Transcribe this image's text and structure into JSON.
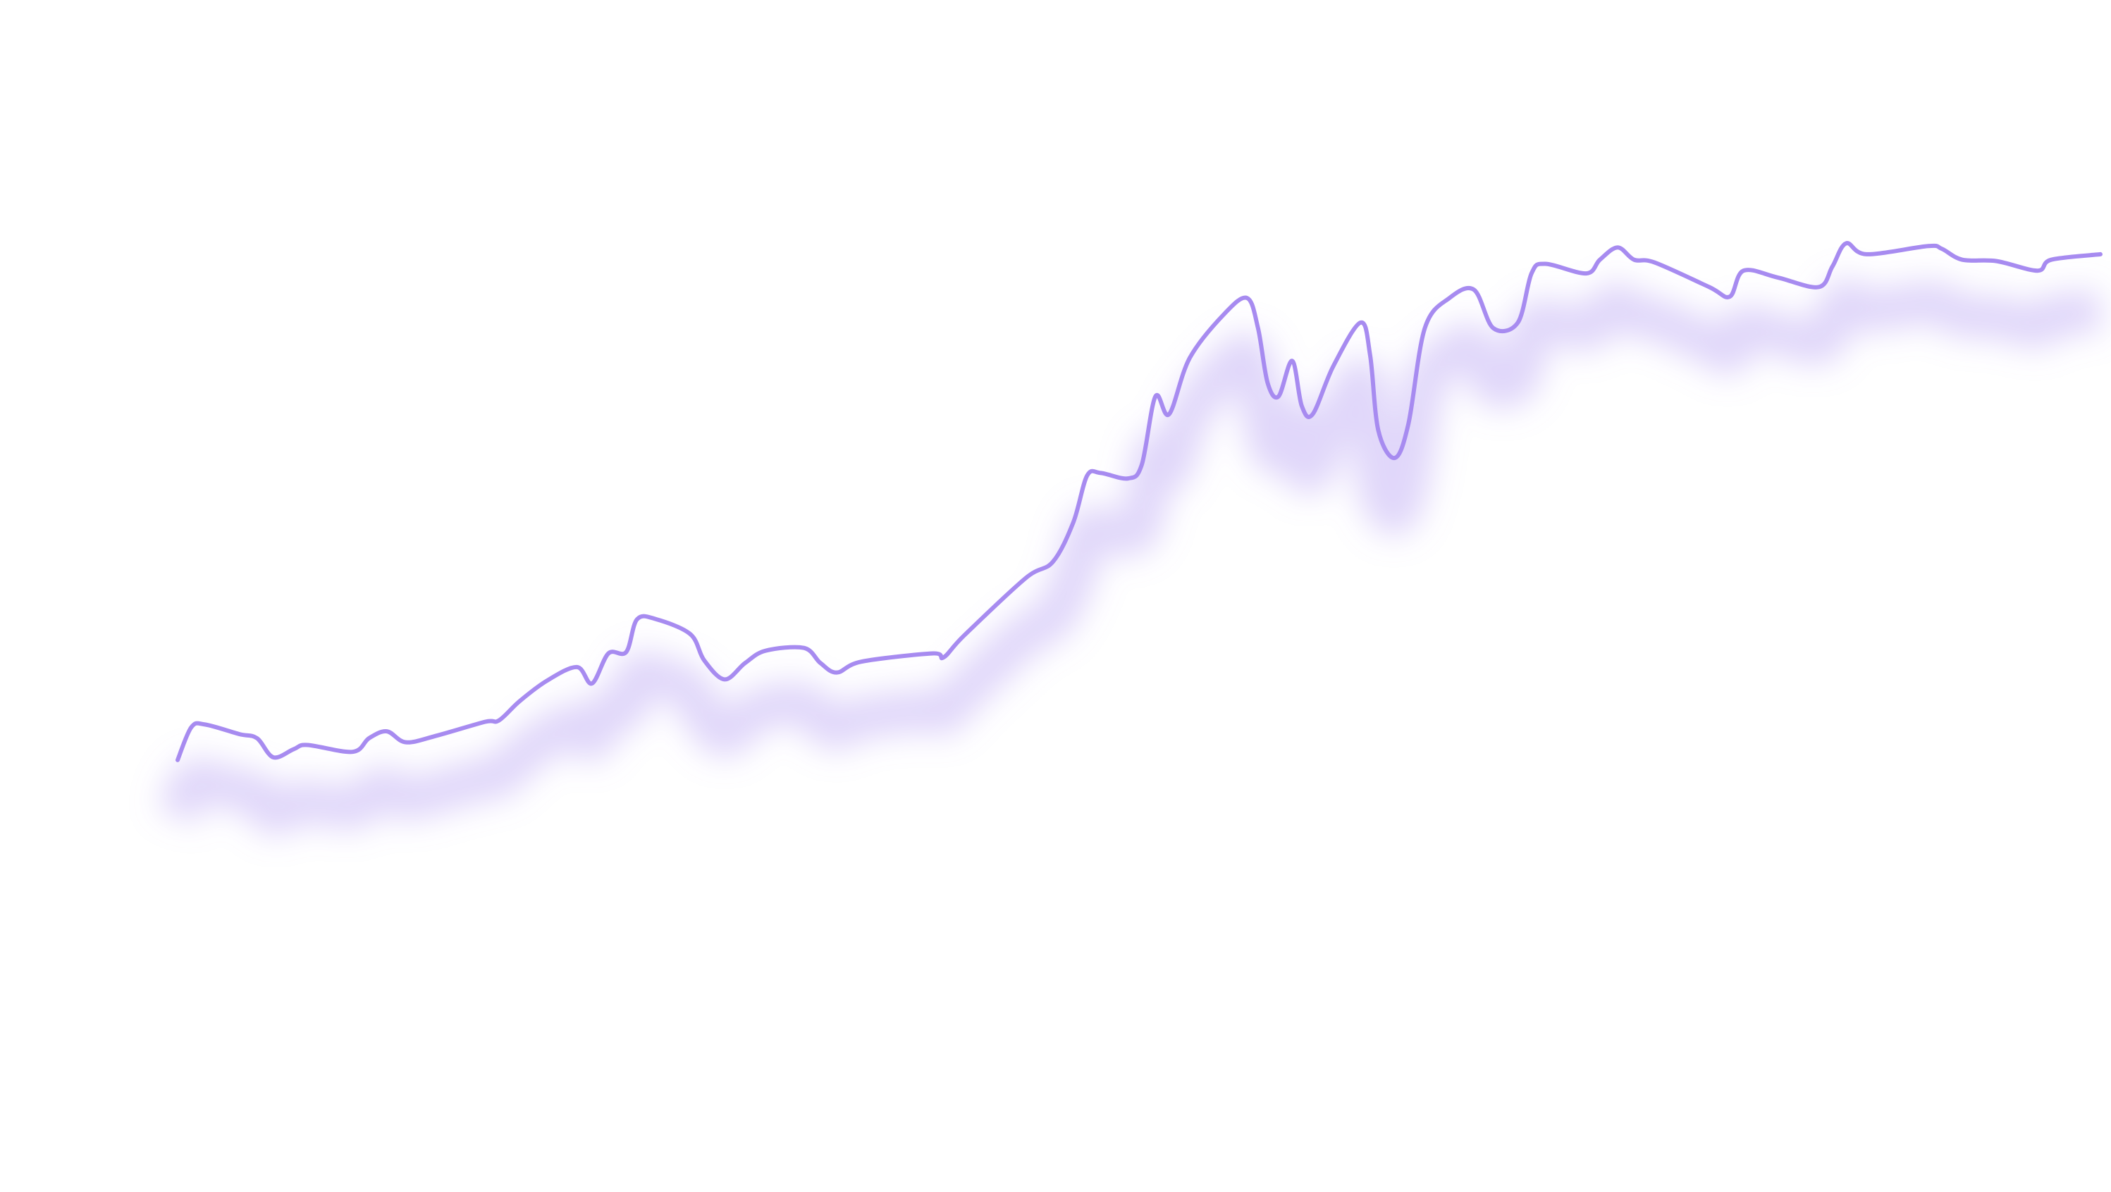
{
  "chart_data": {
    "type": "line",
    "x": [
      130,
      140,
      150,
      175,
      188,
      200,
      215,
      225,
      258,
      270,
      283,
      297,
      320,
      355,
      365,
      380,
      400,
      422,
      433,
      445,
      458,
      466,
      480,
      505,
      515,
      530,
      545,
      560,
      588,
      600,
      612,
      630,
      682,
      690,
      705,
      750,
      770,
      785,
      795,
      805,
      825,
      835,
      845,
      855,
      870,
      895,
      912,
      920,
      927,
      935,
      945,
      952,
      960,
      975,
      995,
      1002,
      1008,
      1020,
      1030,
      1042,
      1060,
      1078,
      1092,
      1110,
      1120,
      1130,
      1160,
      1170,
      1183,
      1195,
      1210,
      1250,
      1265,
      1275,
      1300,
      1330,
      1340,
      1350,
      1365,
      1410,
      1420,
      1435,
      1460,
      1490,
      1500,
      1536
    ],
    "series": [
      {
        "color": "#a78bf0",
        "values": [
          316,
          340,
          342,
          335,
          332,
          318,
          324,
          327,
          322,
          332,
          337,
          329,
          334,
          344,
          345,
          359,
          374,
          384,
          372,
          394,
          395,
          419,
          419,
          408,
          389,
          375,
          387,
          396,
          398,
          387,
          380,
          388,
          394,
          391,
          407,
          449,
          461,
          490,
          524,
          526,
          522,
          532,
          582,
          569,
          610,
          642,
          654,
          632,
          592,
          582,
          608,
          575,
          569,
          604,
          636,
          612,
          557,
          537,
          562,
          632,
          654,
          660,
          632,
          636,
          672,
          679,
          672,
          682,
          691,
          682,
          680,
          662,
          655,
          674,
          669,
          662,
          677,
          694,
          686,
          692,
          690,
          682,
          681,
          674,
          682,
          686
        ]
      }
    ],
    "xlim": [
      130,
      1536
    ],
    "ylim": [
      0,
      872
    ]
  }
}
